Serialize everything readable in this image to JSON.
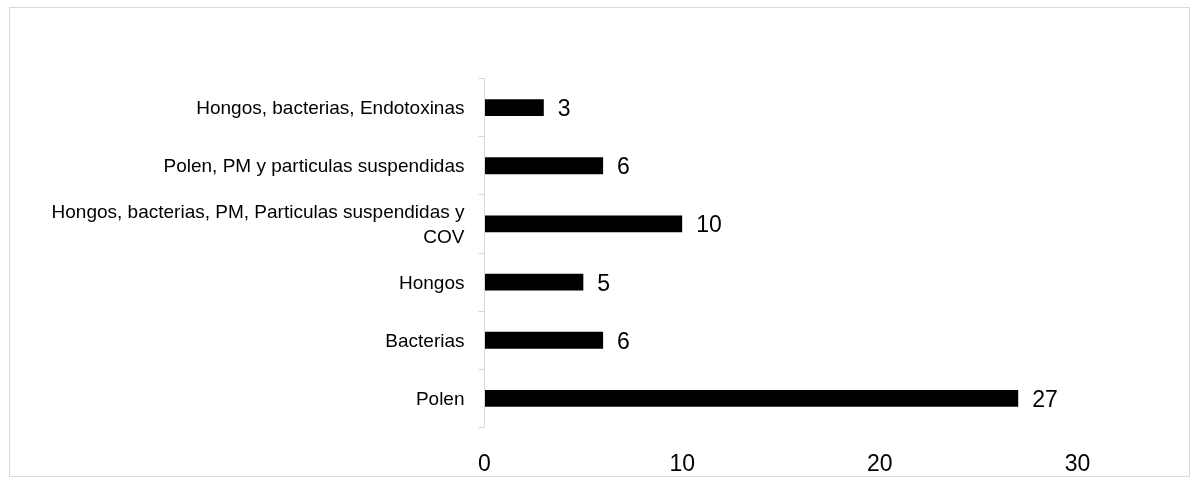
{
  "chart_data": {
    "type": "bar",
    "orientation": "horizontal",
    "categories": [
      "Hongos, bacterias, Endotoxinas",
      "Polen, PM y particulas suspendidas",
      "Hongos, bacterias, PM, Particulas suspendidas y COV",
      "Hongos",
      "Bacterias",
      "Polen"
    ],
    "values": [
      3,
      6,
      10,
      5,
      6,
      27
    ],
    "color": "#000000",
    "xlim": [
      0,
      30
    ],
    "xticks": [
      0,
      10,
      20,
      30
    ],
    "data_labels": true
  }
}
